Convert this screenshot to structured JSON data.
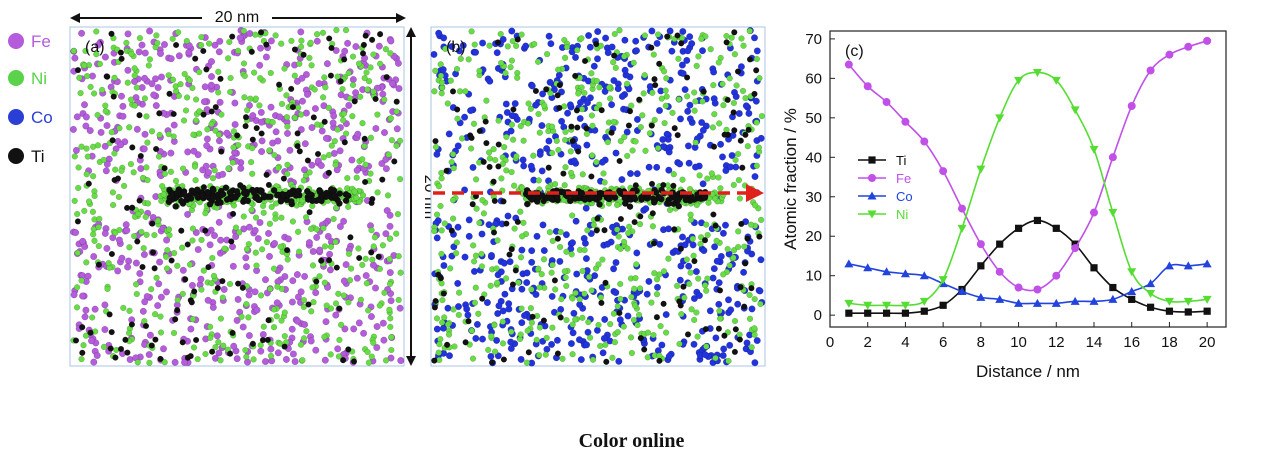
{
  "legend_atoms": [
    {
      "label": "Fe",
      "color": "#b45cdc"
    },
    {
      "label": "Ni",
      "color": "#5ad24a"
    },
    {
      "label": "Co",
      "color": "#2b3fd6"
    },
    {
      "label": "Ti",
      "color": "#111111"
    }
  ],
  "panel_a": {
    "label": "(a)",
    "scale_top": "20 nm",
    "scale_side": "20 nm"
  },
  "panel_b": {
    "label": "(b)"
  },
  "colors": {
    "fe": "#b45cdc",
    "ni": "#66dd44",
    "co": "#2233dd",
    "ti": "#111111",
    "arrow": "#e0201a",
    "frame": "#a9c6e6"
  },
  "caption": "Color online",
  "chart_data": {
    "type": "line",
    "panel_label": "(c)",
    "xlabel": "Distance / nm",
    "ylabel": "Atomic fraction / %",
    "xlim": [
      0,
      21
    ],
    "ylim": [
      -3,
      72
    ],
    "xticks": [
      0,
      2,
      4,
      6,
      8,
      10,
      12,
      14,
      16,
      18,
      20
    ],
    "yticks": [
      0,
      10,
      20,
      30,
      40,
      50,
      60,
      70
    ],
    "grid": false,
    "legend_position": "middle-left",
    "x": [
      1,
      2,
      3,
      4,
      5,
      6,
      7,
      8,
      9,
      10,
      11,
      12,
      13,
      14,
      15,
      16,
      17,
      18,
      19,
      20
    ],
    "series": [
      {
        "name": "Ti",
        "color": "#111111",
        "marker": "square",
        "values": [
          0.5,
          0.5,
          0.5,
          0.5,
          1,
          2.5,
          6.5,
          12.5,
          18,
          22,
          24,
          22,
          18,
          12,
          7,
          4,
          2,
          1,
          0.8,
          1
        ]
      },
      {
        "name": "Fe",
        "color": "#c050e8",
        "marker": "circle",
        "values": [
          63.5,
          58,
          54,
          49,
          44,
          36.5,
          27,
          18,
          11,
          7,
          6.5,
          10,
          17,
          26,
          40,
          53,
          62,
          66,
          68,
          69.5
        ]
      },
      {
        "name": "Co",
        "color": "#2244dd",
        "marker": "triangle-up",
        "values": [
          13,
          12,
          11,
          10.5,
          10,
          8,
          6,
          4.5,
          4,
          3,
          3,
          3,
          3.5,
          3.5,
          4,
          6,
          8,
          12.5,
          12.5,
          13
        ]
      },
      {
        "name": "Ni",
        "color": "#55dd33",
        "marker": "triangle-down",
        "values": [
          3,
          2.5,
          2.5,
          2.5,
          3.5,
          9,
          22,
          37,
          50,
          59.5,
          61.5,
          59.5,
          52,
          42,
          26,
          11,
          5.5,
          3.5,
          3.5,
          4
        ]
      }
    ]
  }
}
